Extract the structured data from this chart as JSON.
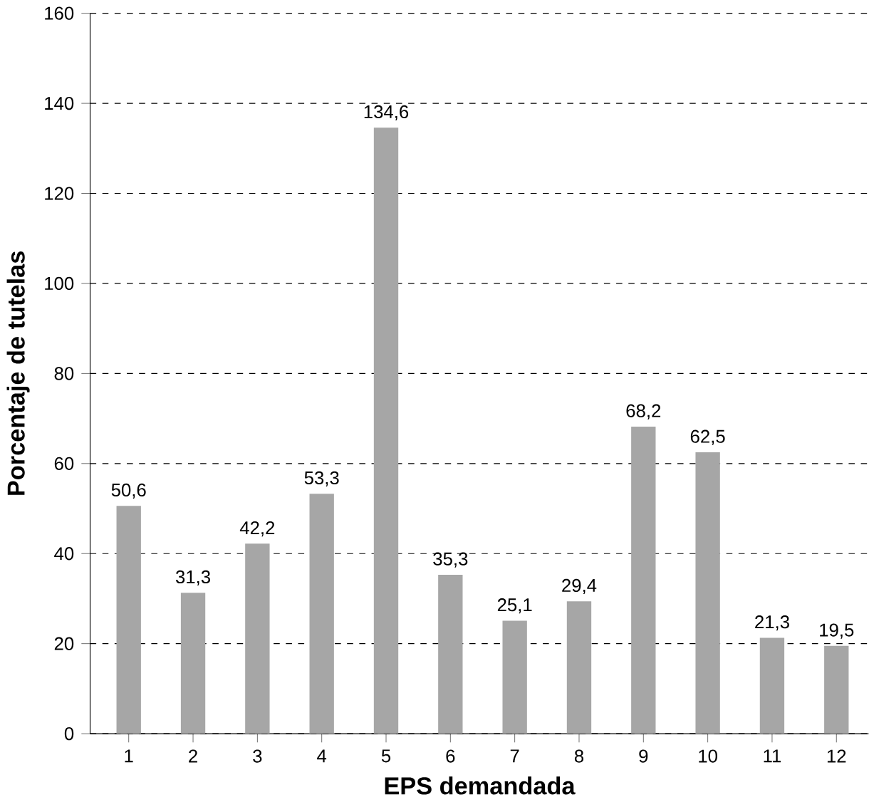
{
  "chart_data": {
    "type": "bar",
    "xlabel": "EPS demandada",
    "ylabel": "Porcentaje de tutelas",
    "categories": [
      "1",
      "2",
      "3",
      "4",
      "5",
      "6",
      "7",
      "8",
      "9",
      "10",
      "11",
      "12"
    ],
    "values": [
      50.6,
      31.3,
      42.2,
      53.3,
      134.6,
      35.3,
      25.1,
      29.4,
      68.2,
      62.5,
      21.3,
      19.5
    ],
    "value_labels": [
      "50,6",
      "31,3",
      "42,2",
      "53,3",
      "134,6",
      "35,3",
      "25,1",
      "29,4",
      "68,2",
      "62,5",
      "21,3",
      "19,5"
    ],
    "color": "#a6a6a6",
    "ylim": [
      0,
      160
    ],
    "yticks": [
      0,
      20,
      40,
      60,
      80,
      100,
      120,
      140,
      160
    ],
    "grid": "y"
  }
}
